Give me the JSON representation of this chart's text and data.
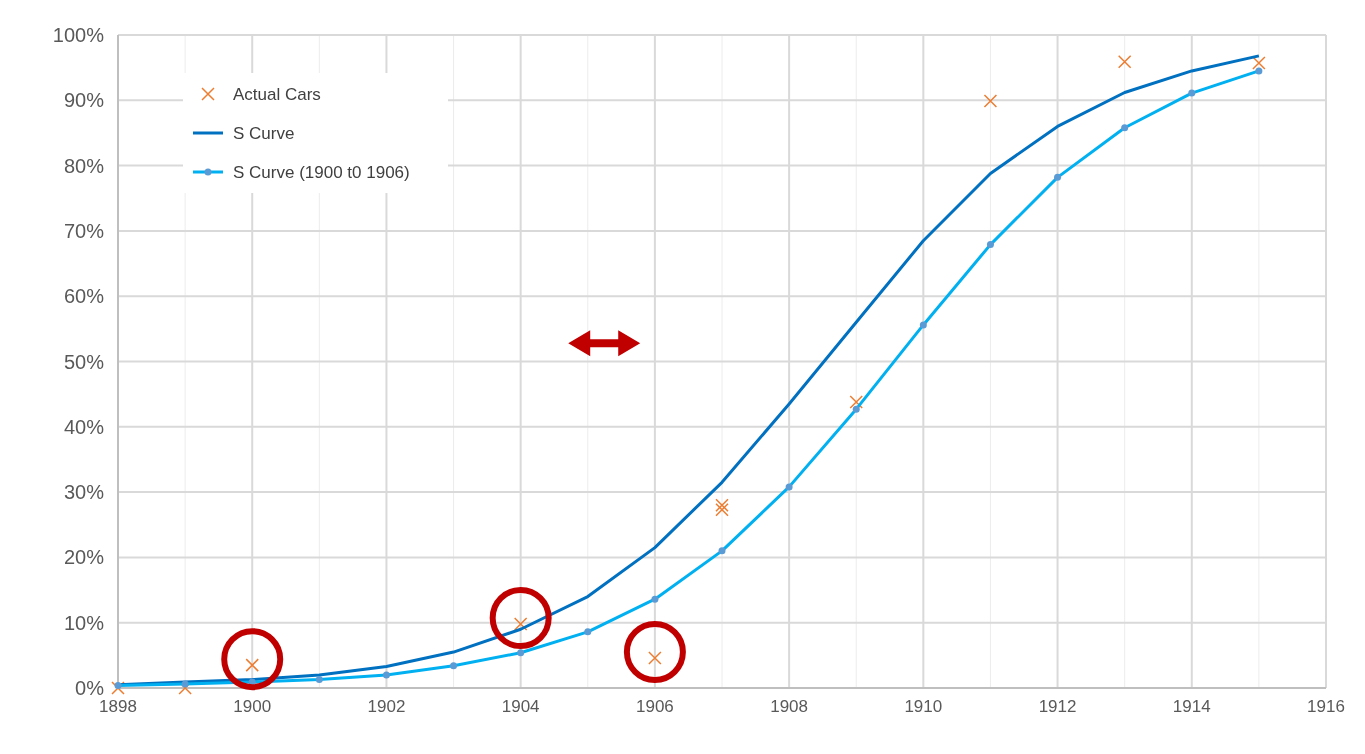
{
  "chart_data": {
    "type": "line",
    "x": [
      1898,
      1899,
      1900,
      1901,
      1902,
      1903,
      1904,
      1905,
      1906,
      1907,
      1908,
      1909,
      1910,
      1911,
      1912,
      1913,
      1914,
      1915
    ],
    "series": [
      {
        "name": "Actual Cars",
        "type": "scatter",
        "marker": "cross",
        "color": "#ed7d31",
        "x": [
          1898,
          1899,
          1900,
          1904,
          1906,
          1907,
          1907,
          1909,
          1911,
          1913,
          1915
        ],
        "values": [
          0,
          0,
          3.5,
          9.8,
          4.6,
          28.0,
          27.3,
          43.8,
          89.9,
          95.9,
          95.7
        ]
      },
      {
        "name": "S Curve",
        "color": "#0070c0",
        "marker": "none",
        "values": [
          0.5,
          0.9,
          1.3,
          2.0,
          3.3,
          5.5,
          9.0,
          14.0,
          21.5,
          31.5,
          43.5,
          56.0,
          68.5,
          78.8,
          86.0,
          91.2,
          94.5,
          96.8
        ]
      },
      {
        "name": "S Curve (1900 t0 1906)",
        "color": "#00b0f0",
        "marker": "circle",
        "values": [
          0.4,
          0.6,
          0.9,
          1.3,
          2.0,
          3.4,
          5.4,
          8.6,
          13.6,
          21.0,
          30.8,
          42.7,
          55.6,
          67.9,
          78.2,
          85.8,
          91.1,
          94.5
        ]
      }
    ],
    "xlim": [
      1898,
      1916
    ],
    "xticks": [
      1898,
      {
        "value": 1899,
        "label": null
      },
      1900,
      {
        "value": 1901,
        "label": null
      },
      1902,
      {
        "value": 1903,
        "label": null
      },
      1904,
      {
        "value": 1905,
        "label": null
      },
      1906,
      {
        "value": 1907,
        "label": null
      },
      1908,
      {
        "value": 1909,
        "label": null
      },
      1910,
      {
        "value": 1911,
        "label": null
      },
      1912,
      {
        "value": 1913,
        "label": null
      },
      1914,
      {
        "value": 1915,
        "label": null
      },
      1916
    ],
    "ylim": [
      0,
      100
    ],
    "yticks": [
      {
        "value": 0,
        "label": "0%"
      },
      {
        "value": 10,
        "label": "10%"
      },
      {
        "value": 20,
        "label": "20%"
      },
      {
        "value": 30,
        "label": "30%"
      },
      {
        "value": 40,
        "label": "40%"
      },
      {
        "value": 50,
        "label": "50%"
      },
      {
        "value": 60,
        "label": "60%"
      },
      {
        "value": 70,
        "label": "70%"
      },
      {
        "value": 80,
        "label": "80%"
      },
      {
        "value": 90,
        "label": "90%"
      },
      {
        "value": 100,
        "label": "100%"
      }
    ],
    "grid": true,
    "legend": "top left"
  }
}
